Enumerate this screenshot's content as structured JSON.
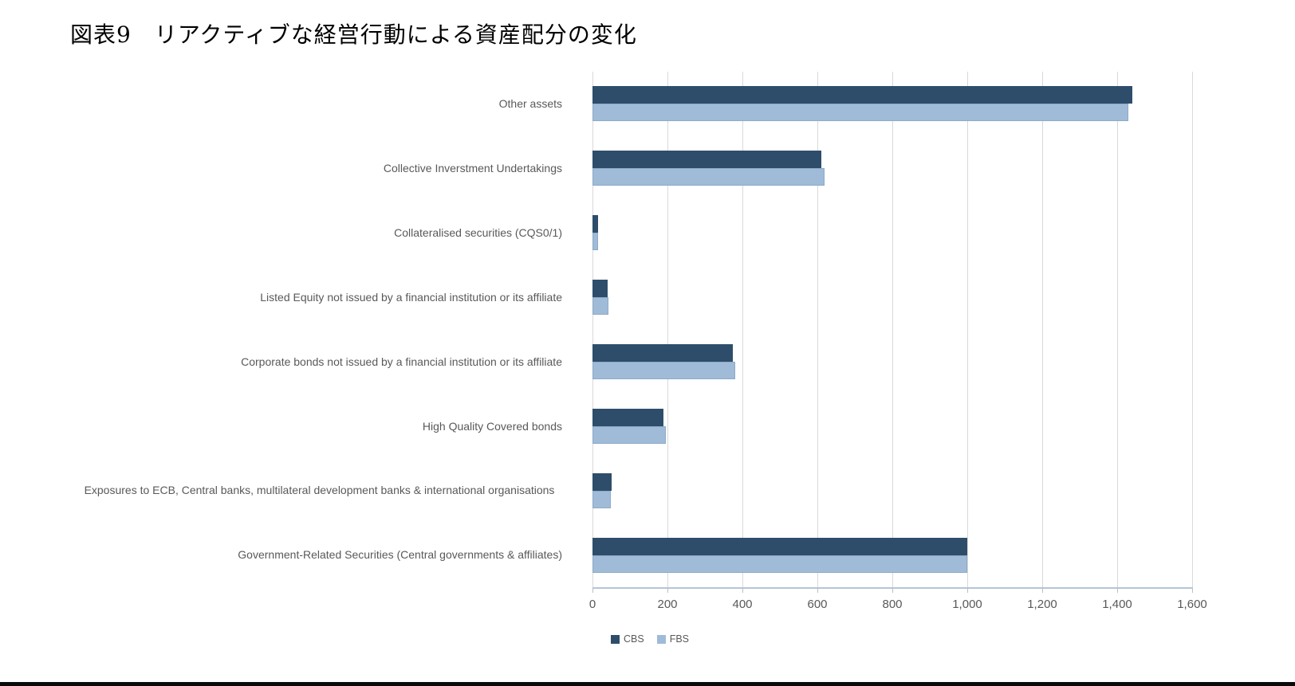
{
  "page": {
    "title": "図表9　リアクティブな経営行動による資産配分の変化"
  },
  "chart_data": {
    "type": "bar",
    "orientation": "horizontal",
    "title": "",
    "xlabel": "",
    "ylabel": "",
    "categories": [
      "Other assets",
      "Collective Inverstment Undertakings",
      "Collateralised securities (CQS0/1)",
      "Listed Equity not issued by a financial institution or its affiliate",
      "Corporate bonds not issued by a financial institution or its affiliate",
      "High Quality Covered bonds",
      "Exposures to ECB, Central banks, multilateral development banks & international organisations",
      "Government-Related Securities (Central governments & affiliates)"
    ],
    "series": [
      {
        "name": "CBS",
        "color": "#2e4d6b",
        "values": [
          1440,
          610,
          15,
          40,
          375,
          190,
          50,
          1000
        ]
      },
      {
        "name": "FBS",
        "color": "#9fbbd8",
        "values": [
          1430,
          620,
          15,
          42,
          380,
          195,
          48,
          1000
        ]
      }
    ],
    "xlim": [
      0,
      1600
    ],
    "xtick_values": [
      0,
      200,
      400,
      600,
      800,
      1000,
      1200,
      1400,
      1600
    ],
    "xtick_labels": [
      "0",
      "200",
      "400",
      "600",
      "800",
      "1,000",
      "1,200",
      "1,400",
      "1,600"
    ],
    "grid": true,
    "gridline_color": "#d9d9d9",
    "axis_line_color": "#b3c6d8",
    "text_color": "#595959",
    "legend_position": "bottom",
    "legend": [
      "CBS",
      "FBS"
    ]
  }
}
